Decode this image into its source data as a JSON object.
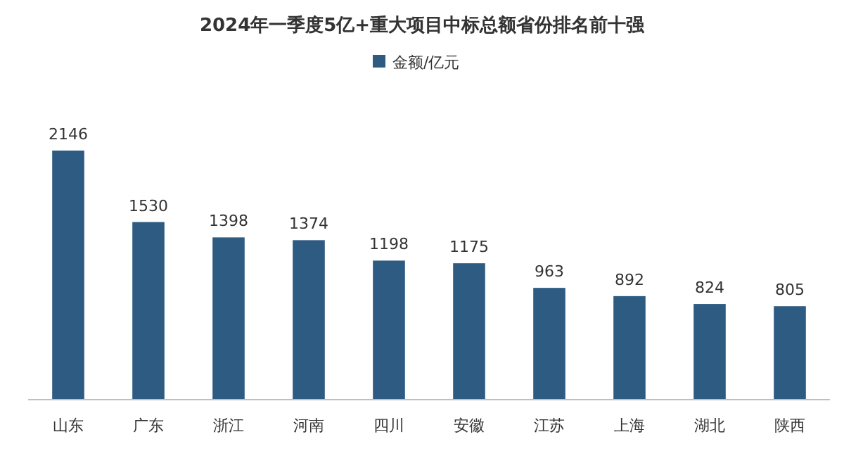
{
  "chart_data": {
    "type": "bar",
    "title": "2024年一季度5亿+重大项目中标总额省份排名前十强",
    "categories": [
      "山东",
      "广东",
      "浙江",
      "河南",
      "四川",
      "安徽",
      "江苏",
      "上海",
      "湖北",
      "陕西"
    ],
    "series": [
      {
        "name": "金额/亿元",
        "color": "#2e5b82",
        "values": [
          2146,
          1530,
          1398,
          1374,
          1198,
          1175,
          963,
          892,
          824,
          805
        ]
      }
    ],
    "data_labels": true,
    "legend": "top"
  }
}
